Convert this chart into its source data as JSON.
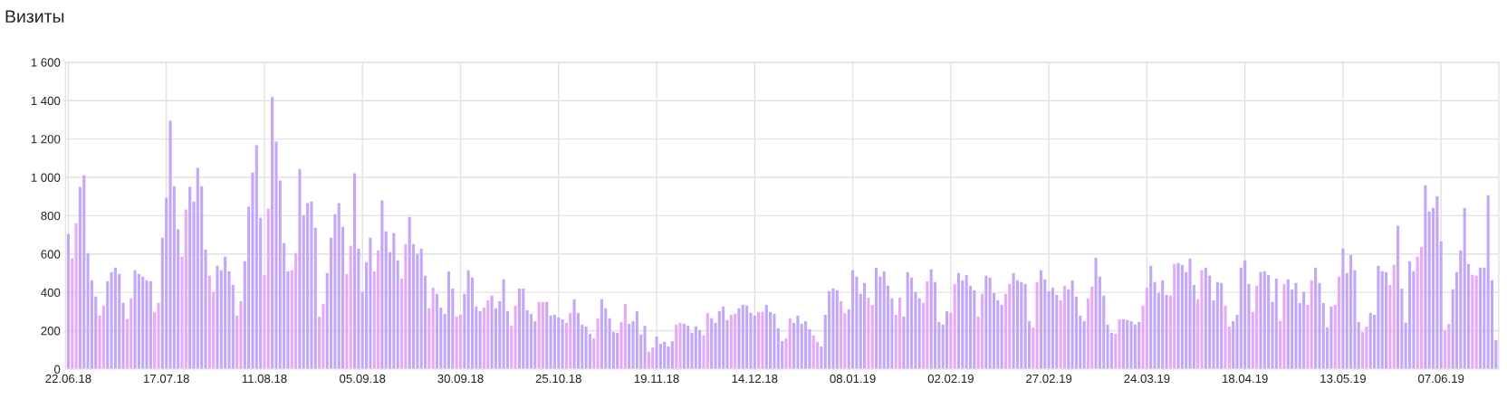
{
  "chart_data": {
    "type": "bar",
    "title": "Визиты",
    "categories": [
      "22.06.18",
      null,
      null,
      null,
      null,
      null,
      null,
      null,
      null,
      null,
      null,
      null,
      null,
      null,
      null,
      null,
      null,
      null,
      null,
      null,
      null,
      null,
      null,
      null,
      null,
      "17.07.18",
      null,
      null,
      null,
      null,
      null,
      null,
      null,
      null,
      null,
      null,
      null,
      null,
      null,
      null,
      null,
      null,
      null,
      null,
      null,
      null,
      null,
      null,
      null,
      null,
      "11.08.18",
      null,
      null,
      null,
      null,
      null,
      null,
      null,
      null,
      null,
      null,
      null,
      null,
      null,
      null,
      null,
      null,
      null,
      null,
      null,
      null,
      null,
      null,
      null,
      null,
      "05.09.18",
      null,
      null,
      null,
      null,
      null,
      null,
      null,
      null,
      null,
      null,
      null,
      null,
      null,
      null,
      null,
      null,
      null,
      null,
      null,
      null,
      null,
      null,
      null,
      null,
      "30.09.18",
      null,
      null,
      null,
      null,
      null,
      null,
      null,
      null,
      null,
      null,
      null,
      null,
      null,
      null,
      null,
      null,
      null,
      null,
      null,
      null,
      null,
      null,
      null,
      null,
      "25.10.18",
      null,
      null,
      null,
      null,
      null,
      null,
      null,
      null,
      null,
      null,
      null,
      null,
      null,
      null,
      null,
      null,
      null,
      null,
      null,
      null,
      null,
      null,
      null,
      null,
      "19.11.18",
      null,
      null,
      null,
      null,
      null,
      null,
      null,
      null,
      null,
      null,
      null,
      null,
      null,
      null,
      null,
      null,
      null,
      null,
      null,
      null,
      null,
      null,
      null,
      null,
      "14.12.18",
      null,
      null,
      null,
      null,
      null,
      null,
      null,
      null,
      null,
      null,
      null,
      null,
      null,
      null,
      null,
      null,
      null,
      null,
      null,
      null,
      null,
      null,
      null,
      null,
      "08.01.19",
      null,
      null,
      null,
      null,
      null,
      null,
      null,
      null,
      null,
      null,
      null,
      null,
      null,
      null,
      null,
      null,
      null,
      null,
      null,
      null,
      null,
      null,
      null,
      null,
      "02.02.19",
      null,
      null,
      null,
      null,
      null,
      null,
      null,
      null,
      null,
      null,
      null,
      null,
      null,
      null,
      null,
      null,
      null,
      null,
      null,
      null,
      null,
      null,
      null,
      null,
      "27.02.19",
      null,
      null,
      null,
      null,
      null,
      null,
      null,
      null,
      null,
      null,
      null,
      null,
      null,
      null,
      null,
      null,
      null,
      null,
      null,
      null,
      null,
      null,
      null,
      null,
      "24.03.19",
      null,
      null,
      null,
      null,
      null,
      null,
      null,
      null,
      null,
      null,
      null,
      null,
      null,
      null,
      null,
      null,
      null,
      null,
      null,
      null,
      null,
      null,
      null,
      null,
      "18.04.19",
      null,
      null,
      null,
      null,
      null,
      null,
      null,
      null,
      null,
      null,
      null,
      null,
      null,
      null,
      null,
      null,
      null,
      null,
      null,
      null,
      null,
      null,
      null,
      null,
      "13.05.19",
      null,
      null,
      null,
      null,
      null,
      null,
      null,
      null,
      null,
      null,
      null,
      null,
      null,
      null,
      null,
      null,
      null,
      null,
      null,
      null,
      null,
      null,
      null,
      null,
      "07.06.19",
      null,
      null,
      null,
      null,
      null,
      null,
      null,
      null,
      null,
      null,
      null,
      null,
      null,
      null
    ],
    "values": [
      705,
      578,
      761,
      950,
      1011,
      605,
      463,
      378,
      279,
      331,
      458,
      506,
      529,
      496,
      345,
      261,
      369,
      515,
      496,
      482,
      463,
      458,
      298,
      345,
      685,
      893,
      1295,
      954,
      728,
      586,
      832,
      950,
      874,
      1049,
      954,
      624,
      487,
      402,
      539,
      515,
      586,
      510,
      439,
      279,
      354,
      562,
      846,
      1025,
      1167,
      789,
      491,
      836,
      1418,
      1186,
      983,
      657,
      510,
      515,
      605,
      1044,
      803,
      865,
      874,
      737,
      274,
      340,
      501,
      685,
      808,
      865,
      742,
      496,
      643,
      1021,
      628,
      402,
      558,
      685,
      510,
      619,
      879,
      718,
      610,
      709,
      567,
      472,
      652,
      794,
      652,
      600,
      628,
      487,
      317,
      425,
      392,
      321,
      288,
      510,
      420,
      274,
      283,
      392,
      515,
      477,
      326,
      302,
      321,
      359,
      383,
      317,
      354,
      468,
      302,
      227,
      331,
      420,
      420,
      307,
      288,
      250,
      350,
      350,
      350,
      279,
      283,
      269,
      260,
      241,
      293,
      364,
      293,
      232,
      222,
      184,
      161,
      265,
      364,
      317,
      265,
      194,
      189,
      246,
      340,
      236,
      250,
      302,
      180,
      227,
      90,
      113,
      170,
      132,
      142,
      118,
      146,
      232,
      241,
      236,
      227,
      189,
      222,
      203,
      175,
      293,
      265,
      241,
      302,
      326,
      255,
      283,
      288,
      317,
      335,
      331,
      293,
      279,
      298,
      298,
      335,
      298,
      288,
      213,
      146,
      161,
      265,
      241,
      279,
      236,
      250,
      208,
      175,
      142,
      118,
      283,
      406,
      421,
      411,
      354,
      293,
      312,
      515,
      482,
      392,
      449,
      373,
      335,
      529,
      482,
      510,
      435,
      369,
      283,
      373,
      274,
      506,
      477,
      402,
      369,
      345,
      458,
      520,
      454,
      246,
      232,
      302,
      293,
      444,
      501,
      463,
      491,
      435,
      411,
      274,
      392,
      487,
      477,
      397,
      359,
      335,
      392,
      444,
      501,
      463,
      454,
      444,
      250,
      217,
      454,
      515,
      468,
      406,
      425,
      387,
      359,
      435,
      416,
      463,
      378,
      279,
      250,
      369,
      430,
      581,
      482,
      383,
      232,
      189,
      184,
      260,
      260,
      255,
      250,
      232,
      246,
      331,
      425,
      539,
      454,
      397,
      463,
      387,
      383,
      548,
      553,
      543,
      506,
      576,
      439,
      364,
      515,
      529,
      487,
      359,
      454,
      449,
      331,
      222,
      250,
      283,
      529,
      567,
      444,
      298,
      435,
      506,
      510,
      491,
      350,
      472,
      250,
      444,
      468,
      416,
      449,
      345,
      402,
      335,
      463,
      529,
      449,
      345,
      217,
      326,
      335,
      482,
      628,
      501,
      595,
      515,
      246,
      194,
      222,
      293,
      283,
      539,
      510,
      506,
      439,
      543,
      747,
      420,
      241,
      562,
      510,
      586,
      638,
      959,
      822,
      841,
      902,
      666,
      203,
      236,
      416,
      506,
      619,
      841,
      548,
      491,
      487,
      529,
      529,
      907,
      463,
      151
    ],
    "colors": [
      "#c3a7f8",
      "#e8a9f6",
      "#e8a9f6",
      "#c3a7f8",
      "#c3a7f8",
      "#c3a7f8",
      "#c3a7f8",
      "#c3a7f8",
      "#e8a9f6",
      "#e8a9f6",
      "#c3a7f8",
      "#c3a7f8",
      "#c3a7f8",
      "#c3a7f8",
      "#c3a7f8",
      "#e8a9f6",
      "#e8a9f6",
      "#c3a7f8",
      "#c3a7f8",
      "#c3a7f8",
      "#c3a7f8",
      "#c3a7f8",
      "#e8a9f6",
      "#e8a9f6",
      "#c3a7f8",
      "#c3a7f8",
      "#c3a7f8",
      "#c3a7f8",
      "#c3a7f8",
      "#e8a9f6",
      "#e8a9f6",
      "#c3a7f8",
      "#c3a7f8",
      "#c3a7f8",
      "#c3a7f8",
      "#c3a7f8",
      "#e8a9f6",
      "#e8a9f6",
      "#c3a7f8",
      "#c3a7f8",
      "#c3a7f8",
      "#c3a7f8",
      "#c3a7f8",
      "#e8a9f6",
      "#e8a9f6",
      "#c3a7f8",
      "#c3a7f8",
      "#c3a7f8",
      "#c3a7f8",
      "#c3a7f8",
      "#e8a9f6",
      "#e8a9f6",
      "#c3a7f8",
      "#c3a7f8",
      "#c3a7f8",
      "#c3a7f8",
      "#c3a7f8",
      "#e8a9f6",
      "#e8a9f6",
      "#c3a7f8",
      "#c3a7f8",
      "#c3a7f8",
      "#c3a7f8",
      "#c3a7f8",
      "#e8a9f6",
      "#e8a9f6",
      "#c3a7f8",
      "#c3a7f8",
      "#c3a7f8",
      "#c3a7f8",
      "#c3a7f8",
      "#e8a9f6",
      "#e8a9f6",
      "#c3a7f8",
      "#c3a7f8",
      "#c3a7f8",
      "#c3a7f8",
      "#c3a7f8",
      "#e8a9f6",
      "#e8a9f6",
      "#c3a7f8",
      "#c3a7f8",
      "#c3a7f8",
      "#c3a7f8",
      "#c3a7f8",
      "#e8a9f6",
      "#e8a9f6",
      "#c3a7f8",
      "#c3a7f8",
      "#c3a7f8",
      "#c3a7f8",
      "#c3a7f8",
      "#e8a9f6",
      "#e8a9f6",
      "#c3a7f8",
      "#c3a7f8",
      "#c3a7f8",
      "#c3a7f8",
      "#c3a7f8",
      "#e8a9f6",
      "#e8a9f6",
      "#c3a7f8",
      "#c3a7f8",
      "#c3a7f8",
      "#c3a7f8",
      "#c3a7f8",
      "#e8a9f6",
      "#e8a9f6",
      "#c3a7f8",
      "#c3a7f8",
      "#c3a7f8",
      "#c3a7f8",
      "#c3a7f8",
      "#e8a9f6",
      "#e8a9f6",
      "#c3a7f8",
      "#c3a7f8",
      "#c3a7f8",
      "#c3a7f8",
      "#c3a7f8",
      "#e8a9f6",
      "#e8a9f6",
      "#c3a7f8",
      "#c3a7f8",
      "#c3a7f8",
      "#c3a7f8",
      "#c3a7f8",
      "#e8a9f6",
      "#e8a9f6",
      "#c3a7f8",
      "#c3a7f8",
      "#c3a7f8",
      "#c3a7f8",
      "#c3a7f8",
      "#e8a9f6",
      "#e8a9f6",
      "#c3a7f8",
      "#c3a7f8",
      "#c3a7f8",
      "#c3a7f8",
      "#c3a7f8",
      "#e8a9f6",
      "#e8a9f6",
      "#c3a7f8",
      "#c3a7f8",
      "#c3a7f8",
      "#c3a7f8",
      "#c3a7f8",
      "#e8a9f6",
      "#e8a9f6",
      "#c3a7f8",
      "#c3a7f8",
      "#c3a7f8",
      "#c3a7f8",
      "#c3a7f8",
      "#e8a9f6",
      "#e8a9f6",
      "#c3a7f8",
      "#c3a7f8",
      "#c3a7f8",
      "#c3a7f8",
      "#c3a7f8",
      "#e8a9f6",
      "#e8a9f6",
      "#c3a7f8",
      "#c3a7f8",
      "#c3a7f8",
      "#c3a7f8",
      "#c3a7f8",
      "#e8a9f6",
      "#e8a9f6",
      "#c3a7f8",
      "#c3a7f8",
      "#c3a7f8",
      "#c3a7f8",
      "#c3a7f8",
      "#e8a9f6",
      "#e8a9f6",
      "#c3a7f8",
      "#c3a7f8",
      "#c3a7f8",
      "#c3a7f8",
      "#c3a7f8",
      "#e8a9f6",
      "#e8a9f6",
      "#c3a7f8",
      "#c3a7f8",
      "#c3a7f8",
      "#c3a7f8",
      "#c3a7f8",
      "#e8a9f6",
      "#e8a9f6",
      "#c3a7f8",
      "#c3a7f8",
      "#c3a7f8",
      "#c3a7f8",
      "#c3a7f8",
      "#e8a9f6",
      "#e8a9f6",
      "#c3a7f8",
      "#c3a7f8",
      "#c3a7f8",
      "#c3a7f8",
      "#c3a7f8",
      "#e8a9f6",
      "#e8a9f6",
      "#c3a7f8",
      "#c3a7f8",
      "#c3a7f8",
      "#c3a7f8",
      "#c3a7f8",
      "#e8a9f6",
      "#e8a9f6",
      "#c3a7f8",
      "#c3a7f8",
      "#c3a7f8",
      "#c3a7f8",
      "#c3a7f8",
      "#e8a9f6",
      "#e8a9f6",
      "#c3a7f8",
      "#c3a7f8",
      "#c3a7f8",
      "#c3a7f8",
      "#c3a7f8",
      "#e8a9f6",
      "#e8a9f6",
      "#c3a7f8",
      "#c3a7f8",
      "#c3a7f8",
      "#c3a7f8",
      "#c3a7f8",
      "#e8a9f6",
      "#e8a9f6",
      "#c3a7f8",
      "#c3a7f8",
      "#c3a7f8",
      "#c3a7f8",
      "#c3a7f8",
      "#e8a9f6",
      "#e8a9f6",
      "#c3a7f8",
      "#c3a7f8",
      "#c3a7f8",
      "#c3a7f8",
      "#c3a7f8",
      "#e8a9f6",
      "#e8a9f6",
      "#c3a7f8",
      "#c3a7f8",
      "#c3a7f8",
      "#c3a7f8",
      "#c3a7f8",
      "#e8a9f6",
      "#e8a9f6",
      "#c3a7f8",
      "#c3a7f8",
      "#c3a7f8",
      "#c3a7f8",
      "#c3a7f8",
      "#e8a9f6",
      "#e8a9f6",
      "#c3a7f8",
      "#c3a7f8",
      "#c3a7f8",
      "#c3a7f8",
      "#c3a7f8",
      "#e8a9f6",
      "#e8a9f6",
      "#c3a7f8",
      "#c3a7f8",
      "#c3a7f8",
      "#c3a7f8",
      "#c3a7f8",
      "#e8a9f6",
      "#e8a9f6",
      "#c3a7f8",
      "#c3a7f8",
      "#c3a7f8",
      "#c3a7f8",
      "#c3a7f8",
      "#e8a9f6",
      "#e8a9f6",
      "#c3a7f8",
      "#c3a7f8",
      "#c3a7f8",
      "#c3a7f8",
      "#c3a7f8",
      "#e8a9f6",
      "#e8a9f6",
      "#c3a7f8",
      "#c3a7f8",
      "#c3a7f8",
      "#c3a7f8",
      "#c3a7f8",
      "#e8a9f6",
      "#e8a9f6",
      "#c3a7f8",
      "#c3a7f8",
      "#c3a7f8",
      "#c3a7f8",
      "#c3a7f8",
      "#e8a9f6",
      "#e8a9f6",
      "#c3a7f8",
      "#c3a7f8",
      "#c3a7f8",
      "#c3a7f8",
      "#c3a7f8",
      "#e8a9f6",
      "#e8a9f6",
      "#c3a7f8",
      "#c3a7f8",
      "#c3a7f8",
      "#c3a7f8",
      "#c3a7f8",
      "#e8a9f6",
      "#e8a9f6",
      "#c3a7f8",
      "#c3a7f8",
      "#c3a7f8",
      "#c3a7f8",
      "#c3a7f8",
      "#e8a9f6",
      "#e8a9f6",
      "#c3a7f8",
      "#c3a7f8",
      "#c3a7f8",
      "#c3a7f8",
      "#c3a7f8",
      "#e8a9f6",
      "#e8a9f6",
      "#c3a7f8",
      "#c3a7f8",
      "#c3a7f8",
      "#c3a7f8",
      "#c3a7f8",
      "#e8a9f6",
      "#e8a9f6",
      "#c3a7f8",
      "#c3a7f8",
      "#c3a7f8",
      "#c3a7f8",
      "#c3a7f8",
      "#e8a9f6",
      "#e8a9f6",
      "#c3a7f8",
      "#c3a7f8",
      "#c3a7f8",
      "#c3a7f8",
      "#c3a7f8",
      "#e8a9f6",
      "#e8a9f6",
      "#c3a7f8",
      "#c3a7f8",
      "#c3a7f8",
      "#c3a7f8",
      "#c3a7f8",
      "#e8a9f6",
      "#e8a9f6",
      "#c3a7f8",
      "#c3a7f8",
      "#c3a7f8",
      "#c3a7f8",
      "#c3a7f8"
    ],
    "ylim": [
      0,
      1600
    ],
    "yticks": [
      0,
      200,
      400,
      600,
      800,
      {
        "value": 1000,
        "label": "1 000"
      },
      {
        "value": 1200,
        "label": "1 200"
      },
      {
        "value": 1400,
        "label": "1 400"
      },
      {
        "value": 1600,
        "label": "1 600"
      }
    ],
    "grid": true
  }
}
